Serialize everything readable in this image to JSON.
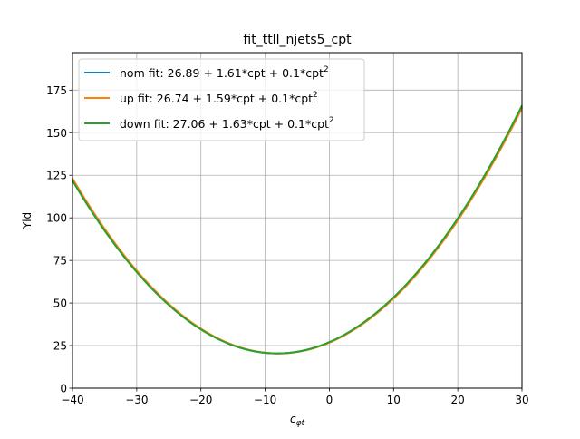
{
  "chart_data": {
    "type": "line",
    "title": "fit_ttll_njets5_cpt",
    "xlabel": "c",
    "xlabel_sub": "φt",
    "ylabel": "Yld",
    "xlim": [
      -40,
      30
    ],
    "ylim": [
      0,
      197
    ],
    "xticks": [
      -40,
      -30,
      -20,
      -10,
      0,
      10,
      20,
      30
    ],
    "yticks": [
      0,
      25,
      50,
      75,
      100,
      125,
      150,
      175
    ],
    "xtick_labels": [
      "−40",
      "−30",
      "−20",
      "−10",
      "0",
      "10",
      "20",
      "30"
    ],
    "ytick_labels": [
      "0",
      "25",
      "50",
      "75",
      "100",
      "125",
      "150",
      "175"
    ],
    "grid": true,
    "legend_position": "top-left",
    "series": [
      {
        "name": "nom fit: 26.89 + 1.61*cpt + 0.1*cpt",
        "superscript": "2",
        "color": "#1f77b4",
        "coefficients": [
          26.89,
          1.61,
          0.1
        ],
        "x": [
          -40,
          -35,
          -30,
          -25,
          -20,
          -15,
          -10,
          -8.05,
          -5,
          0,
          5,
          10,
          15,
          20,
          25,
          30
        ],
        "y": [
          118.5,
          92.9,
          69.6,
          48.6,
          35.4,
          24.2,
          20.8,
          20.4,
          21.2,
          26.9,
          37.4,
          53.3,
          74.3,
          99.8,
          129.1,
          162.3
        ]
      },
      {
        "name": "up fit: 26.74 + 1.59*cpt + 0.1*cpt",
        "superscript": "2",
        "color": "#ff7f0e",
        "coefficients": [
          26.74,
          1.59,
          0.1
        ],
        "x": [
          -40,
          -35,
          -30,
          -25,
          -20,
          -15,
          -10,
          -8.05,
          -5,
          0,
          5,
          10,
          15,
          20,
          25,
          30
        ],
        "y": [
          117.1,
          91.7,
          68.6,
          47.8,
          34.8,
          23.9,
          20.7,
          20.4,
          21.2,
          26.7,
          37.1,
          52.7,
          73.4,
          98.5,
          127.4,
          160.0
        ]
      },
      {
        "name": "down fit: 27.06 + 1.63*cpt + 0.1*cpt",
        "superscript": "2",
        "color": "#2ca02c",
        "coefficients": [
          27.06,
          1.63,
          0.1
        ],
        "x": [
          -40,
          -35,
          -30,
          -25,
          -20,
          -15,
          -10,
          -8.05,
          -5,
          0,
          5,
          10,
          15,
          20,
          25,
          30
        ],
        "y": [
          120.0,
          94.0,
          70.5,
          49.4,
          36.1,
          24.7,
          21.1,
          20.6,
          21.4,
          27.1,
          37.6,
          53.8,
          75.0,
          101.3,
          131.2,
          164.9
        ]
      }
    ]
  }
}
